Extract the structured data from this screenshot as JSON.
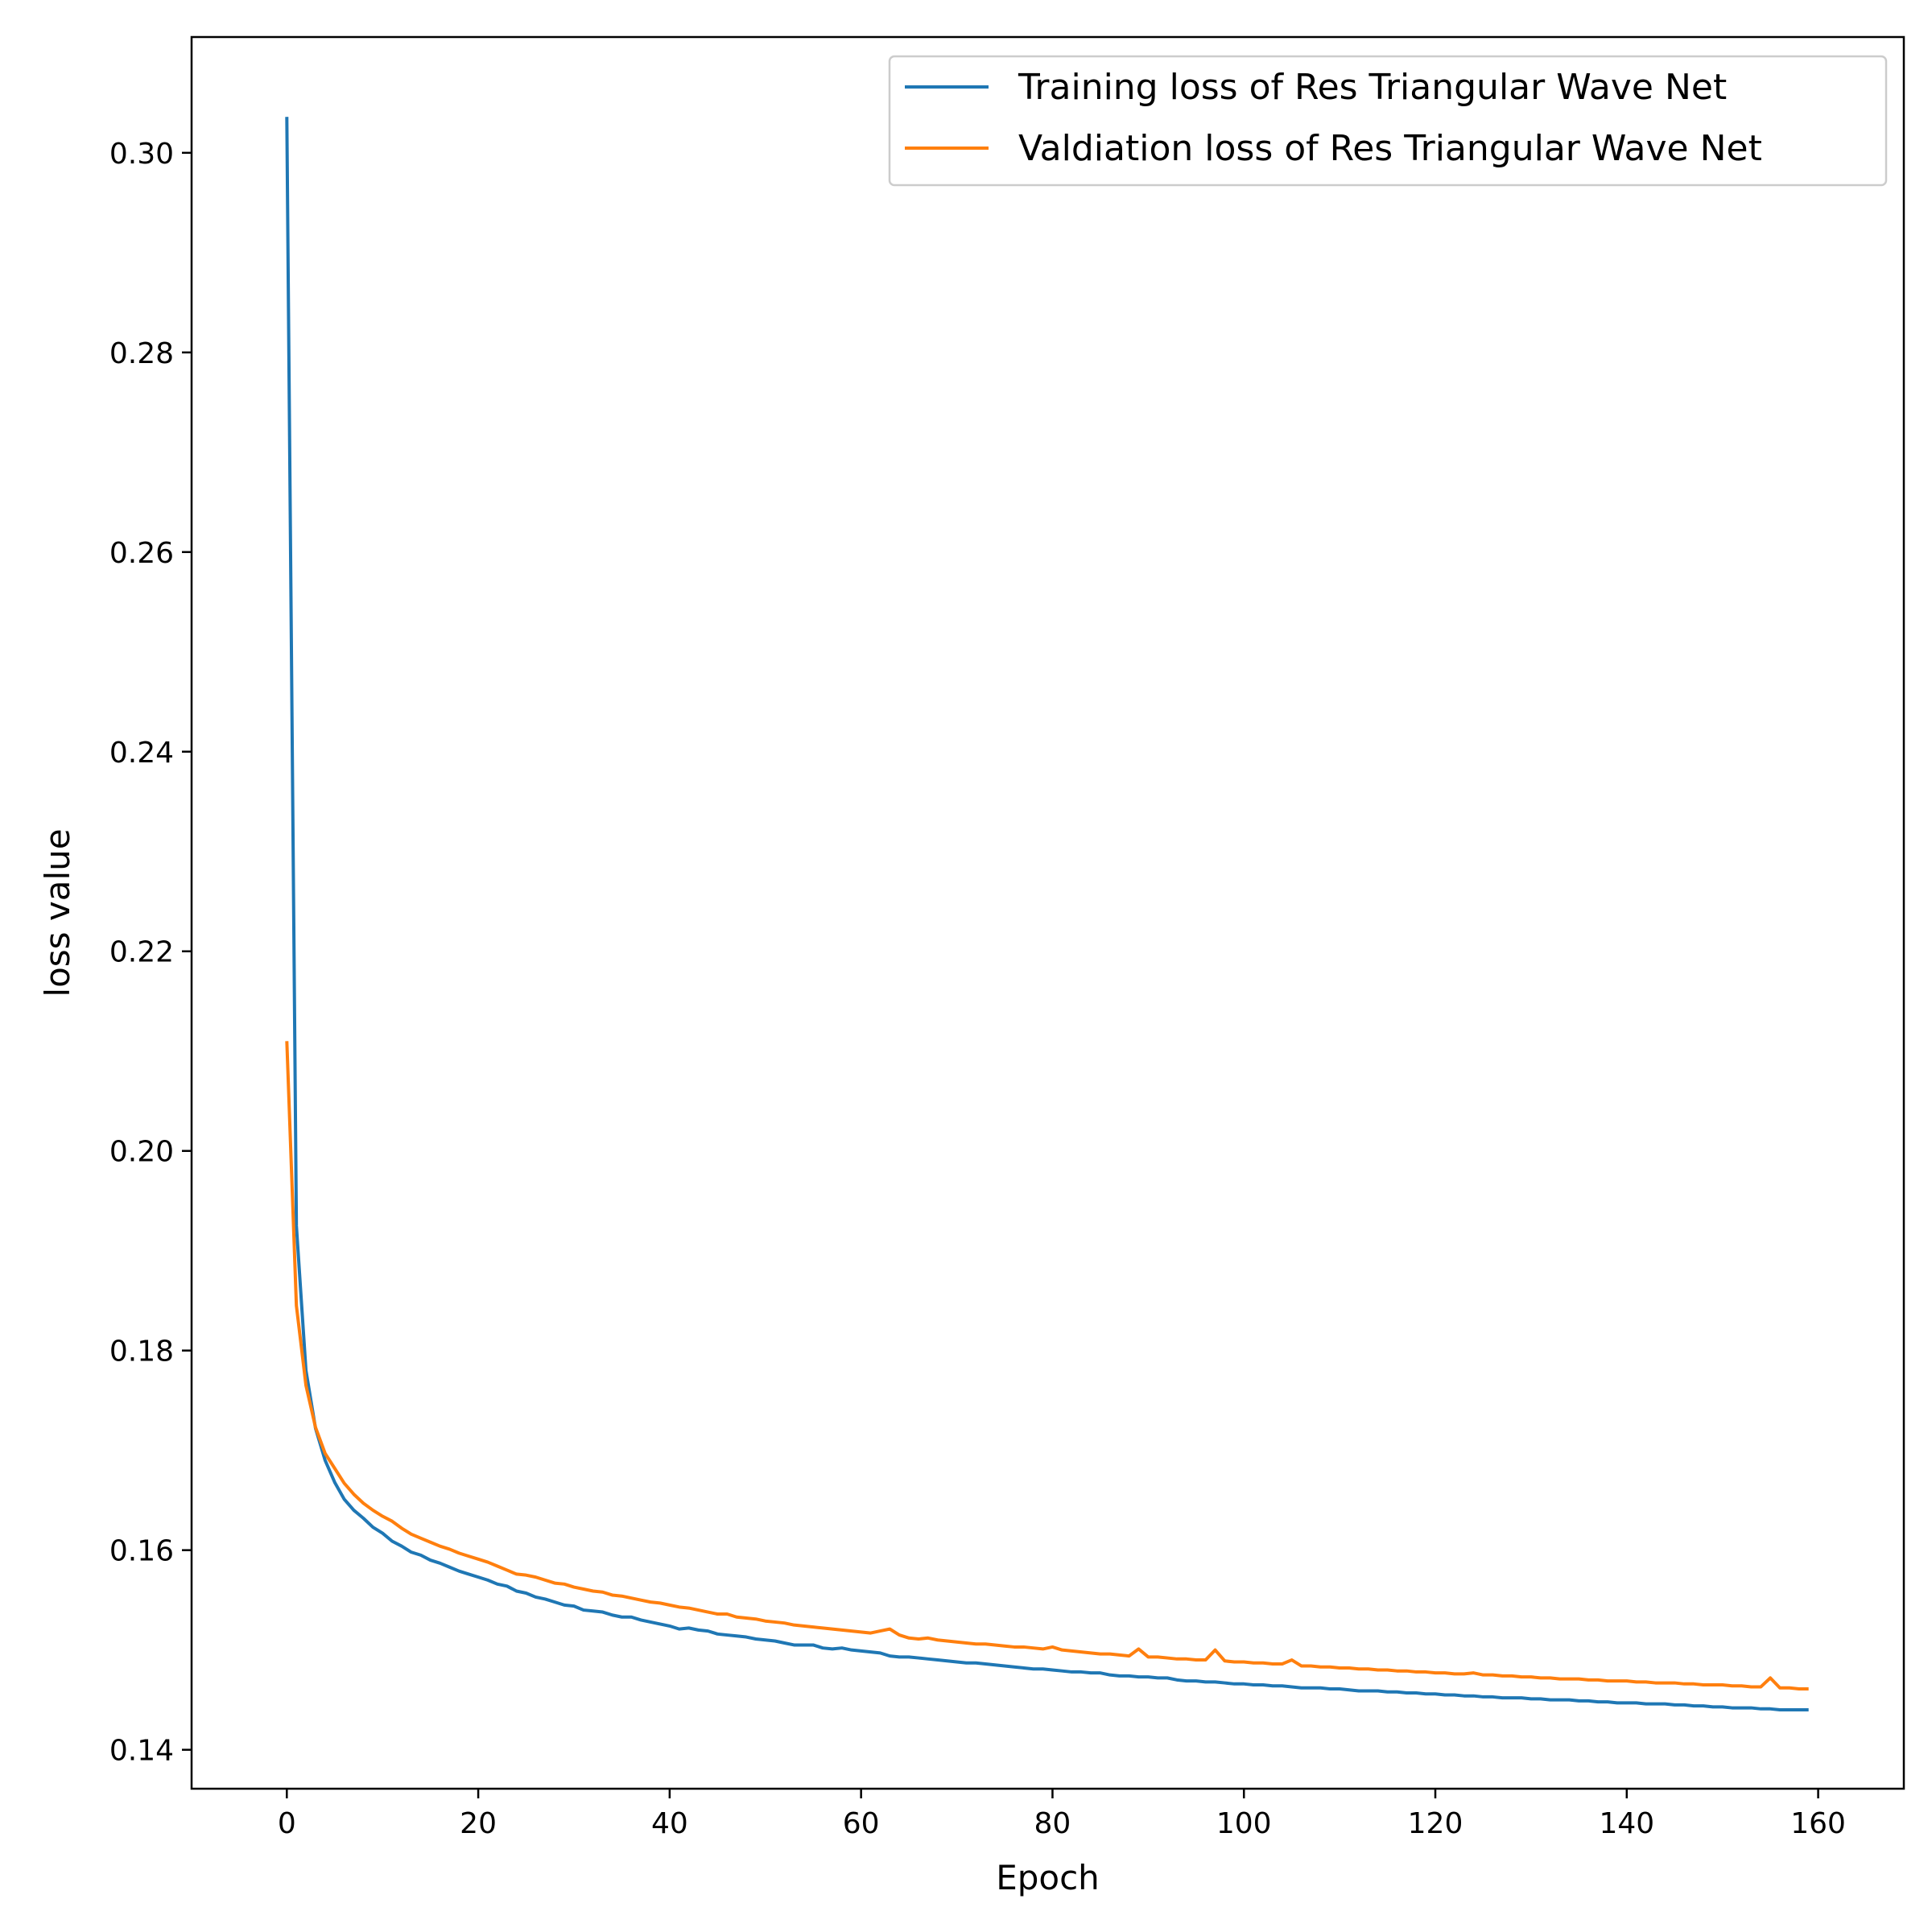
{
  "chart_data": {
    "type": "line",
    "title": "",
    "xlabel": "Epoch",
    "ylabel": "loss value",
    "xlim": [
      -9.95,
      168.95
    ],
    "ylim": [
      0.1361,
      0.3116
    ],
    "xticks": [
      0,
      20,
      40,
      60,
      80,
      100,
      120,
      140,
      160
    ],
    "xtick_labels": [
      "0",
      "20",
      "40",
      "60",
      "80",
      "100",
      "120",
      "140",
      "160"
    ],
    "yticks": [
      0.14,
      0.16,
      0.18,
      0.2,
      0.22,
      0.24,
      0.26,
      0.28,
      0.3
    ],
    "ytick_labels": [
      "0.14",
      "0.16",
      "0.18",
      "0.20",
      "0.22",
      "0.24",
      "0.26",
      "0.28",
      "0.30"
    ],
    "grid": false,
    "legend_position": "top-right",
    "x": [
      0,
      1,
      2,
      3,
      4,
      5,
      6,
      7,
      8,
      9,
      10,
      11,
      12,
      13,
      14,
      15,
      16,
      17,
      18,
      19,
      20,
      21,
      22,
      23,
      24,
      25,
      26,
      27,
      28,
      29,
      30,
      31,
      32,
      33,
      34,
      35,
      36,
      37,
      38,
      39,
      40,
      41,
      42,
      43,
      44,
      45,
      46,
      47,
      48,
      49,
      50,
      51,
      52,
      53,
      54,
      55,
      56,
      57,
      58,
      59,
      60,
      61,
      62,
      63,
      64,
      65,
      66,
      67,
      68,
      69,
      70,
      71,
      72,
      73,
      74,
      75,
      76,
      77,
      78,
      79,
      80,
      81,
      82,
      83,
      84,
      85,
      86,
      87,
      88,
      89,
      90,
      91,
      92,
      93,
      94,
      95,
      96,
      97,
      98,
      99,
      100,
      101,
      102,
      103,
      104,
      105,
      106,
      107,
      108,
      109,
      110,
      111,
      112,
      113,
      114,
      115,
      116,
      117,
      118,
      119,
      120,
      121,
      122,
      123,
      124,
      125,
      126,
      127,
      128,
      129,
      130,
      131,
      132,
      133,
      134,
      135,
      136,
      137,
      138,
      139,
      140,
      141,
      142,
      143,
      144,
      145,
      146,
      147,
      148,
      149,
      150,
      151,
      152,
      153,
      154,
      155,
      156,
      157,
      158,
      159
    ],
    "series": [
      {
        "name": "Training loss of Res Triangular Wave Net",
        "color": "#1f77b4",
        "values": [
          0.3036,
          0.1925,
          0.178,
          0.1722,
          0.169,
          0.1668,
          0.1651,
          0.164,
          0.1632,
          0.1623,
          0.1617,
          0.1609,
          0.1604,
          0.1598,
          0.1595,
          0.159,
          0.1587,
          0.1583,
          0.1579,
          0.1576,
          0.1573,
          0.157,
          0.1566,
          0.1564,
          0.1559,
          0.1557,
          0.1553,
          0.1551,
          0.1548,
          0.1545,
          0.1544,
          0.154,
          0.1539,
          0.1538,
          0.1535,
          0.1533,
          0.1533,
          0.153,
          0.1528,
          0.1526,
          0.1524,
          0.1521,
          0.1522,
          0.152,
          0.1519,
          0.1516,
          0.1515,
          0.1514,
          0.1513,
          0.1511,
          0.151,
          0.1509,
          0.1507,
          0.1505,
          0.1505,
          0.1505,
          0.1502,
          0.1501,
          0.1502,
          0.15,
          0.1499,
          0.1498,
          0.1497,
          0.1494,
          0.1493,
          0.1493,
          0.1492,
          0.1491,
          0.149,
          0.1489,
          0.1488,
          0.1487,
          0.1487,
          0.1486,
          0.1485,
          0.1484,
          0.1483,
          0.1482,
          0.1481,
          0.1481,
          0.148,
          0.1479,
          0.1478,
          0.1478,
          0.1477,
          0.1477,
          0.1475,
          0.1474,
          0.1474,
          0.1473,
          0.1473,
          0.1472,
          0.1472,
          0.147,
          0.1469,
          0.1469,
          0.1468,
          0.1468,
          0.1467,
          0.1466,
          0.1466,
          0.1465,
          0.1465,
          0.1464,
          0.1464,
          0.1463,
          0.1462,
          0.1462,
          0.1462,
          0.1461,
          0.1461,
          0.146,
          0.1459,
          0.1459,
          0.1459,
          0.1458,
          0.1458,
          0.1457,
          0.1457,
          0.1456,
          0.1456,
          0.1455,
          0.1455,
          0.1454,
          0.1454,
          0.1453,
          0.1453,
          0.1452,
          0.1452,
          0.1452,
          0.1451,
          0.1451,
          0.145,
          0.145,
          0.145,
          0.1449,
          0.1449,
          0.1448,
          0.1448,
          0.1447,
          0.1447,
          0.1447,
          0.1446,
          0.1446,
          0.1446,
          0.1445,
          0.1445,
          0.1444,
          0.1444,
          0.1443,
          0.1443,
          0.1442,
          0.1442,
          0.1442,
          0.1441,
          0.1441,
          0.144,
          0.144,
          0.144,
          0.144
        ]
      },
      {
        "name": "Valdiation loss of Res Triangular Wave Net",
        "color": "#ff7f0e",
        "values": [
          0.211,
          0.1845,
          0.1765,
          0.1723,
          0.1697,
          0.1682,
          0.1667,
          0.1656,
          0.1647,
          0.164,
          0.1634,
          0.1629,
          0.1622,
          0.1616,
          0.1612,
          0.1608,
          0.1604,
          0.1601,
          0.1597,
          0.1594,
          0.1591,
          0.1588,
          0.1584,
          0.158,
          0.1576,
          0.1575,
          0.1573,
          0.157,
          0.1567,
          0.1566,
          0.1563,
          0.1561,
          0.1559,
          0.1558,
          0.1555,
          0.1554,
          0.1552,
          0.155,
          0.1548,
          0.1547,
          0.1545,
          0.1543,
          0.1542,
          0.154,
          0.1538,
          0.1536,
          0.1536,
          0.1533,
          0.1532,
          0.1531,
          0.1529,
          0.1528,
          0.1527,
          0.1525,
          0.1524,
          0.1523,
          0.1522,
          0.1521,
          0.152,
          0.1519,
          0.1518,
          0.1517,
          0.1519,
          0.1521,
          0.1515,
          0.1512,
          0.1511,
          0.1512,
          0.151,
          0.1509,
          0.1508,
          0.1507,
          0.1506,
          0.1506,
          0.1505,
          0.1504,
          0.1503,
          0.1503,
          0.1502,
          0.1501,
          0.1503,
          0.15,
          0.1499,
          0.1498,
          0.1497,
          0.1496,
          0.1496,
          0.1495,
          0.1494,
          0.1501,
          0.1493,
          0.1493,
          0.1492,
          0.1491,
          0.1491,
          0.149,
          0.149,
          0.15,
          0.1489,
          0.1488,
          0.1488,
          0.1487,
          0.1487,
          0.1486,
          0.1486,
          0.149,
          0.1484,
          0.1484,
          0.1483,
          0.1483,
          0.1482,
          0.1482,
          0.1481,
          0.1481,
          0.148,
          0.148,
          0.1479,
          0.1479,
          0.1478,
          0.1478,
          0.1477,
          0.1477,
          0.1476,
          0.1476,
          0.1477,
          0.1475,
          0.1475,
          0.1474,
          0.1474,
          0.1473,
          0.1473,
          0.1472,
          0.1472,
          0.1471,
          0.1471,
          0.1471,
          0.147,
          0.147,
          0.1469,
          0.1469,
          0.1469,
          0.1468,
          0.1468,
          0.1467,
          0.1467,
          0.1467,
          0.1466,
          0.1466,
          0.1465,
          0.1465,
          0.1465,
          0.1464,
          0.1464,
          0.1463,
          0.1463,
          0.1472,
          0.1462,
          0.1462,
          0.1461,
          0.1461
        ]
      }
    ]
  }
}
